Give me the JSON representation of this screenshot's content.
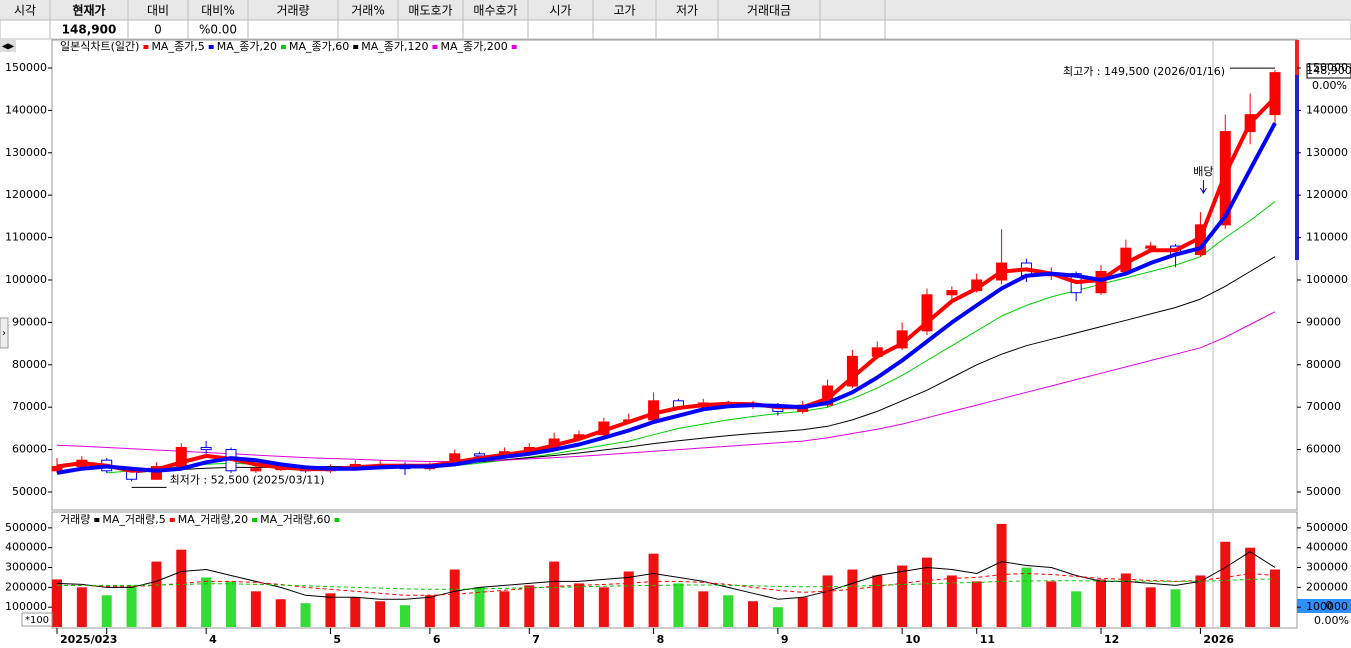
{
  "header": {
    "columns": [
      "시각",
      "현재가",
      "대비",
      "대비%",
      "거래량",
      "거래%",
      "매도호가",
      "매수호가",
      "시가",
      "고가",
      "저가",
      "거래대금"
    ],
    "current_price": "148,900",
    "change": "0",
    "change_pct": "%0.00"
  },
  "chart_data": [
    {
      "type": "candlestick",
      "title": "일본식차트(일간)",
      "categories": [
        "2025/02",
        null,
        "3",
        null,
        null,
        null,
        "4",
        null,
        null,
        null,
        null,
        "5",
        null,
        null,
        null,
        "6",
        null,
        null,
        null,
        "7",
        null,
        null,
        null,
        null,
        "8",
        null,
        null,
        null,
        null,
        "9",
        null,
        null,
        null,
        null,
        "10",
        null,
        null,
        "11",
        null,
        null,
        null,
        null,
        "12",
        null,
        null,
        null,
        "2026",
        null,
        null,
        null
      ],
      "open": [
        55000,
        56000,
        57500,
        55000,
        53000,
        56000,
        60500,
        60000,
        55000,
        55500,
        55500,
        55000,
        55500,
        56500,
        56500,
        55500,
        56500,
        59000,
        58500,
        59500,
        60500,
        62500,
        63500,
        66500,
        67000,
        71500,
        70000,
        71000,
        70500,
        70500,
        69000,
        70500,
        75000,
        82000,
        84000,
        88000,
        96500,
        97500,
        100000,
        104000,
        101000,
        101500,
        97000,
        102000,
        107500,
        108000,
        106000,
        113000,
        135000,
        139000
      ],
      "high": [
        58000,
        58500,
        58000,
        55500,
        57000,
        61500,
        62000,
        60500,
        56500,
        56500,
        56000,
        56500,
        57500,
        57500,
        57000,
        57000,
        60000,
        59500,
        60500,
        61500,
        64000,
        64500,
        67500,
        68500,
        73500,
        72000,
        72000,
        71500,
        71500,
        71000,
        71500,
        76500,
        83500,
        85500,
        90000,
        98000,
        98500,
        101500,
        112000,
        105000,
        103000,
        102000,
        103500,
        109500,
        109000,
        108500,
        116000,
        139000,
        144000,
        149500
      ],
      "low": [
        54500,
        55500,
        54500,
        52500,
        53000,
        55500,
        59000,
        54500,
        54500,
        55000,
        54500,
        54500,
        55000,
        55500,
        54000,
        55000,
        56000,
        58000,
        58000,
        59500,
        60000,
        62500,
        63000,
        66000,
        66500,
        69500,
        69500,
        70000,
        69500,
        68000,
        68500,
        70000,
        74500,
        81500,
        83500,
        87000,
        95500,
        97000,
        99000,
        99500,
        100000,
        95000,
        96500,
        101500,
        106500,
        103000,
        105500,
        112000,
        132000,
        136500
      ],
      "close": [
        56000,
        57500,
        55000,
        53000,
        56000,
        60500,
        60000,
        55000,
        55500,
        55500,
        55000,
        55500,
        56500,
        56500,
        55500,
        56500,
        59000,
        58500,
        59500,
        60500,
        62500,
        63500,
        66500,
        67000,
        71500,
        70000,
        71000,
        70500,
        70500,
        69000,
        70500,
        75000,
        82000,
        84000,
        88000,
        96500,
        97500,
        100000,
        104000,
        101000,
        101500,
        97000,
        102000,
        107500,
        108000,
        106000,
        113000,
        135000,
        139000,
        148900
      ],
      "up_color": "#ff0000",
      "down_color": "#0000ff",
      "series": [
        {
          "name": "MA_종가,5",
          "color": "#ff0000",
          "width": 4,
          "values": [
            56000,
            56800,
            56200,
            55000,
            55300,
            57000,
            58500,
            57800,
            56500,
            55800,
            55400,
            55400,
            55800,
            56200,
            56200,
            56200,
            57000,
            58000,
            58800,
            59600,
            61000,
            62500,
            64500,
            66500,
            68500,
            69800,
            70500,
            70800,
            70700,
            70000,
            70000,
            72000,
            77000,
            82000,
            85000,
            90000,
            95000,
            98000,
            102000,
            102500,
            101500,
            99500,
            100000,
            104000,
            107000,
            107000,
            110000,
            125000,
            137000,
            143000
          ]
        },
        {
          "name": "MA_종가,20",
          "color": "#0000ff",
          "width": 4,
          "values": [
            54500,
            55500,
            56000,
            55500,
            55000,
            55500,
            57000,
            58000,
            57500,
            56500,
            55800,
            55500,
            55500,
            55800,
            56000,
            56000,
            56500,
            57500,
            58300,
            59000,
            60000,
            61200,
            62800,
            64500,
            66500,
            68000,
            69500,
            70200,
            70500,
            70300,
            70000,
            71000,
            73500,
            77000,
            81000,
            85500,
            90000,
            94000,
            98000,
            101000,
            101500,
            101000,
            100000,
            101500,
            104000,
            106000,
            107500,
            115000,
            126000,
            137000
          ]
        },
        {
          "name": "MA_종가,60",
          "color": "#00d000",
          "width": 1,
          "values": [
            null,
            null,
            54500,
            55000,
            55500,
            56000,
            56500,
            56800,
            56500,
            56200,
            56000,
            55800,
            55700,
            55800,
            55800,
            55900,
            56200,
            56800,
            57500,
            58200,
            59000,
            60000,
            61000,
            62000,
            63500,
            65000,
            66000,
            67000,
            67800,
            68500,
            69000,
            70000,
            72000,
            74500,
            77500,
            81000,
            84500,
            88000,
            91500,
            94000,
            96000,
            97500,
            99000,
            100500,
            102000,
            103500,
            105500,
            110000,
            114000,
            118500
          ]
        },
        {
          "name": "MA_종가,120",
          "color": "#000000",
          "width": 1,
          "values": [
            null,
            null,
            null,
            54500,
            55000,
            55300,
            55600,
            55800,
            55800,
            55800,
            55900,
            56000,
            56000,
            56100,
            56200,
            56400,
            56700,
            57100,
            57600,
            58100,
            58600,
            59200,
            59900,
            60600,
            61400,
            62100,
            62700,
            63300,
            63800,
            64200,
            64700,
            65500,
            67000,
            69000,
            71500,
            74000,
            77000,
            80000,
            82500,
            84500,
            86000,
            87500,
            89000,
            90500,
            92000,
            93500,
            95500,
            98500,
            102000,
            105500
          ]
        },
        {
          "name": "MA_종가,200",
          "color": "#e000e0",
          "width": 1,
          "values": [
            61000,
            60800,
            60500,
            60200,
            59900,
            59600,
            59300,
            59000,
            58700,
            58400,
            58100,
            57900,
            57700,
            57500,
            57300,
            57200,
            57200,
            57300,
            57500,
            57800,
            58100,
            58400,
            58800,
            59200,
            59600,
            60000,
            60400,
            60800,
            61200,
            61600,
            62000,
            62800,
            63800,
            64800,
            66000,
            67500,
            69000,
            70500,
            72000,
            73500,
            75000,
            76500,
            78000,
            79500,
            81000,
            82500,
            84000,
            86500,
            89500,
            92500
          ]
        }
      ],
      "ylim": [
        45750,
        156600
      ],
      "yticks": [
        50000,
        60000,
        70000,
        80000,
        90000,
        100000,
        110000,
        120000,
        130000,
        140000,
        150000
      ],
      "high_note": "최고가 : 149,500 (2026/01/16)",
      "low_note": "최저가 : 52,500 (2025/03/11)",
      "dividend_note": "배당",
      "last_label": "148,900",
      "change_label": "0.00%"
    },
    {
      "type": "bar",
      "title": "거래량",
      "values": [
        240000,
        200000,
        160000,
        210000,
        330000,
        390000,
        250000,
        230000,
        180000,
        140000,
        120000,
        170000,
        150000,
        130000,
        110000,
        160000,
        290000,
        200000,
        180000,
        210000,
        330000,
        220000,
        200000,
        280000,
        370000,
        220000,
        180000,
        160000,
        130000,
        100000,
        150000,
        260000,
        290000,
        260000,
        310000,
        350000,
        260000,
        230000,
        520000,
        300000,
        230000,
        180000,
        240000,
        270000,
        200000,
        190000,
        260000,
        430000,
        400000,
        290000
      ],
      "up_color": "#ee1111",
      "down_color": "#33dd33",
      "series": [
        {
          "name": "MA_거래량,5",
          "color": "#000000",
          "dash": false,
          "values": [
            220000,
            215000,
            200000,
            200000,
            230000,
            280000,
            290000,
            260000,
            230000,
            200000,
            160000,
            150000,
            150000,
            140000,
            140000,
            150000,
            180000,
            200000,
            210000,
            220000,
            230000,
            230000,
            240000,
            250000,
            270000,
            250000,
            230000,
            200000,
            170000,
            140000,
            150000,
            180000,
            220000,
            260000,
            280000,
            300000,
            290000,
            270000,
            330000,
            310000,
            300000,
            260000,
            230000,
            230000,
            220000,
            210000,
            230000,
            300000,
            380000,
            300000
          ]
        },
        {
          "name": "MA_거래량,20",
          "color": "#ff0000",
          "dash": true,
          "values": [
            210000,
            210000,
            205000,
            205000,
            210000,
            220000,
            230000,
            230000,
            225000,
            215000,
            200000,
            190000,
            180000,
            170000,
            160000,
            160000,
            165000,
            175000,
            185000,
            195000,
            205000,
            210000,
            215000,
            220000,
            230000,
            230000,
            225000,
            215000,
            200000,
            185000,
            175000,
            180000,
            190000,
            205000,
            220000,
            235000,
            245000,
            250000,
            265000,
            270000,
            265000,
            255000,
            245000,
            240000,
            235000,
            230000,
            235000,
            250000,
            270000,
            260000
          ]
        },
        {
          "name": "MA_거래량,60",
          "color": "#00cc00",
          "dash": true,
          "values": [
            210000,
            210000,
            210000,
            210000,
            212000,
            215000,
            218000,
            218000,
            215000,
            212000,
            208000,
            204000,
            200000,
            196000,
            192000,
            190000,
            190000,
            192000,
            195000,
            198000,
            200000,
            203000,
            206000,
            208000,
            210000,
            212000,
            212000,
            211000,
            208000,
            205000,
            203000,
            204000,
            206000,
            210000,
            214000,
            218000,
            222000,
            225000,
            230000,
            232000,
            233000,
            233000,
            232000,
            232000,
            231000,
            230000,
            231000,
            235000,
            240000,
            242000
          ]
        }
      ],
      "ylim": [
        -5000,
        580000
      ],
      "yticks": [
        100000,
        200000,
        300000,
        400000,
        500000
      ],
      "unit_note": "*100",
      "last_label": "0",
      "change_label": "0.00%"
    }
  ]
}
